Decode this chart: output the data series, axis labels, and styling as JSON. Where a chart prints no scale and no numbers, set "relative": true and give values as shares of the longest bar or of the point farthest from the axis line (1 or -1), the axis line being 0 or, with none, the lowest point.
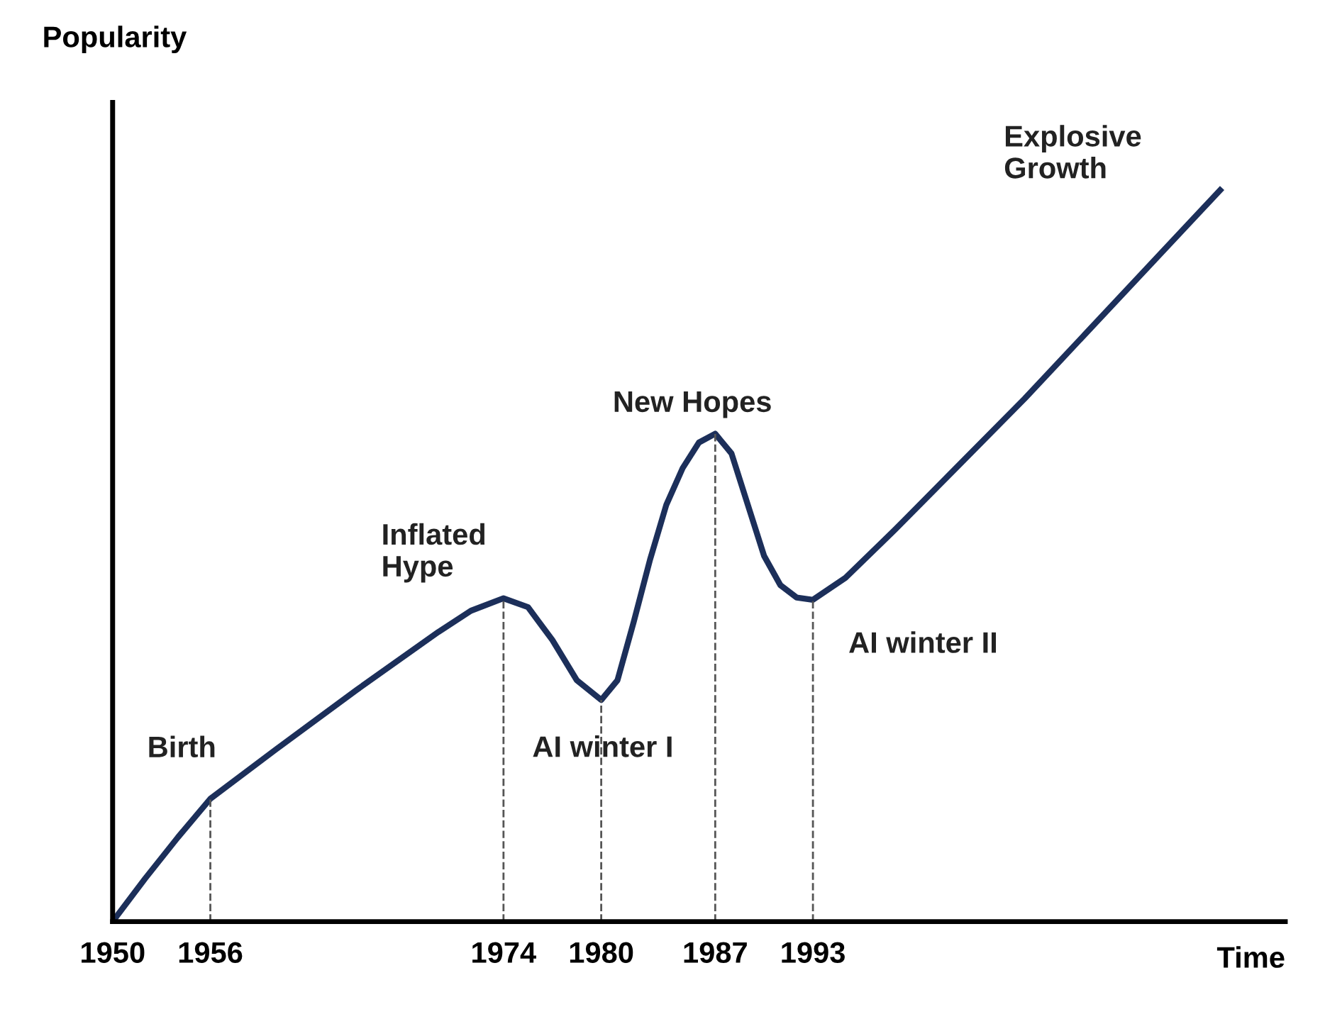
{
  "chart_data": {
    "type": "line",
    "relative": true,
    "xlabel": "Time",
    "ylabel": "Popularity",
    "x": [
      1950,
      1952,
      1954,
      1956,
      1960,
      1965,
      1970,
      1972,
      1974,
      1975.5,
      1977,
      1978.5,
      1980,
      1981,
      1982,
      1983,
      1984,
      1985,
      1986,
      1987,
      1988,
      1989,
      1990,
      1991,
      1992,
      1993,
      1995,
      1998,
      2002,
      2006,
      2010,
      2014,
      2018
    ],
    "series": [
      {
        "color": "#1c2f5a",
        "values": [
          0,
          0.059,
          0.115,
          0.168,
          0.235,
          0.317,
          0.396,
          0.425,
          0.442,
          0.43,
          0.385,
          0.33,
          0.303,
          0.33,
          0.41,
          0.495,
          0.57,
          0.62,
          0.655,
          0.667,
          0.64,
          0.57,
          0.5,
          0.46,
          0.443,
          0.44,
          0.47,
          0.535,
          0.625,
          0.715,
          0.81,
          0.905,
          1.0
        ]
      }
    ],
    "xlim": [
      1950,
      2022
    ],
    "xticks": [
      1950,
      1956,
      1974,
      1980,
      1987,
      1993
    ],
    "tick_labels": "x",
    "ref_lines": [
      {
        "axis": "x",
        "value": 1956,
        "line_style": "dashed"
      },
      {
        "axis": "x",
        "value": 1974,
        "line_style": "dashed"
      },
      {
        "axis": "x",
        "value": 1980,
        "line_style": "dashed"
      },
      {
        "axis": "x",
        "value": 1987,
        "line_style": "dashed"
      },
      {
        "axis": "x",
        "value": 1993,
        "line_style": "dashed"
      }
    ],
    "annotations": [
      {
        "text": "Birth",
        "x": 1956,
        "y": 0.168
      },
      {
        "text": "Inflated\nHype",
        "x": 1974,
        "y": 0.442
      },
      {
        "text": "AI winter I",
        "x": 1980,
        "y": 0.303
      },
      {
        "text": "New Hopes",
        "x": 1987,
        "y": 0.667
      },
      {
        "text": "AI winter II",
        "x": 1993,
        "y": 0.44
      },
      "Explosive\nGrowth"
    ],
    "grid": false,
    "marker": "none",
    "line_style": "solid"
  }
}
